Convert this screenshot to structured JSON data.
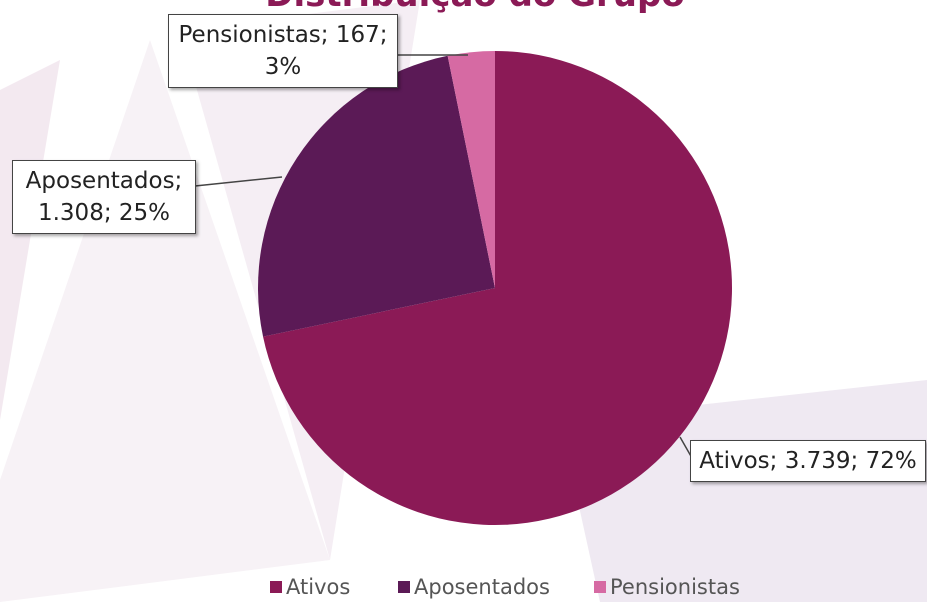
{
  "chart_data": {
    "type": "pie",
    "title": "Distribuição do Grupo",
    "categories": [
      "Ativos",
      "Aposentados",
      "Pensionistas"
    ],
    "values": [
      3739,
      1308,
      167
    ],
    "value_labels": [
      "Ativos; 3.739; 72%",
      "Aposentados; 1.308; 25%",
      "Pensionistas; 167; 3%"
    ],
    "colors": [
      "#8b1a56",
      "#5b1a56",
      "#d66aa3"
    ],
    "legend": "bottom"
  }
}
